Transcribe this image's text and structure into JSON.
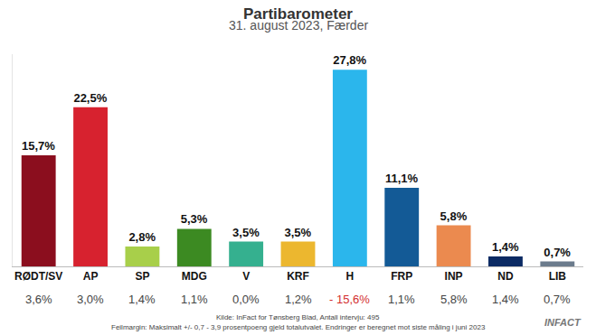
{
  "chart_data": {
    "type": "bar",
    "title": "Partibarometer",
    "subtitle": "31. august 2023, Færder",
    "categories": [
      "RØDT/SV",
      "AP",
      "SP",
      "MDG",
      "V",
      "KRF",
      "H",
      "FRP",
      "INP",
      "ND",
      "LIB"
    ],
    "values": [
      15.7,
      22.5,
      2.8,
      5.3,
      3.5,
      3.5,
      27.8,
      11.1,
      5.8,
      1.4,
      0.7
    ],
    "value_labels": [
      "15,7%",
      "22,5%",
      "2,8%",
      "5,3%",
      "3,5%",
      "3,5%",
      "27,8%",
      "11,1%",
      "5,8%",
      "1,4%",
      "0,7%"
    ],
    "colors": [
      "#8b0e1e",
      "#d7222f",
      "#a8cf4a",
      "#3c8a22",
      "#35b08f",
      "#ecb72f",
      "#2bb6ec",
      "#135a96",
      "#eb8a4f",
      "#0b2a63",
      "#6b7b8c"
    ],
    "changes": [
      3.6,
      3.0,
      1.4,
      1.1,
      0.0,
      1.2,
      -15.6,
      1.1,
      5.8,
      1.4,
      0.7
    ],
    "change_labels": [
      "3,6%",
      "3,0%",
      "1,4%",
      "1,1%",
      "0,0%",
      "1,2%",
      "- 15,6%",
      "1,1%",
      "5,8%",
      "1,4%",
      "0,7%"
    ],
    "ylim": [
      0,
      30
    ],
    "yticks": [],
    "grid": false,
    "data_labels": true,
    "tick_labels": "x",
    "source": "Kilde: InFact for Tønsberg Blad, Antall intervju: 495",
    "note": "Feilmargin: Maksimalt +/- 0,7 - 3,9 prosentpoeng gjeld totalutvalet. Endringer er beregnet mot siste måling i juni 2023",
    "logo": "INFACT"
  }
}
